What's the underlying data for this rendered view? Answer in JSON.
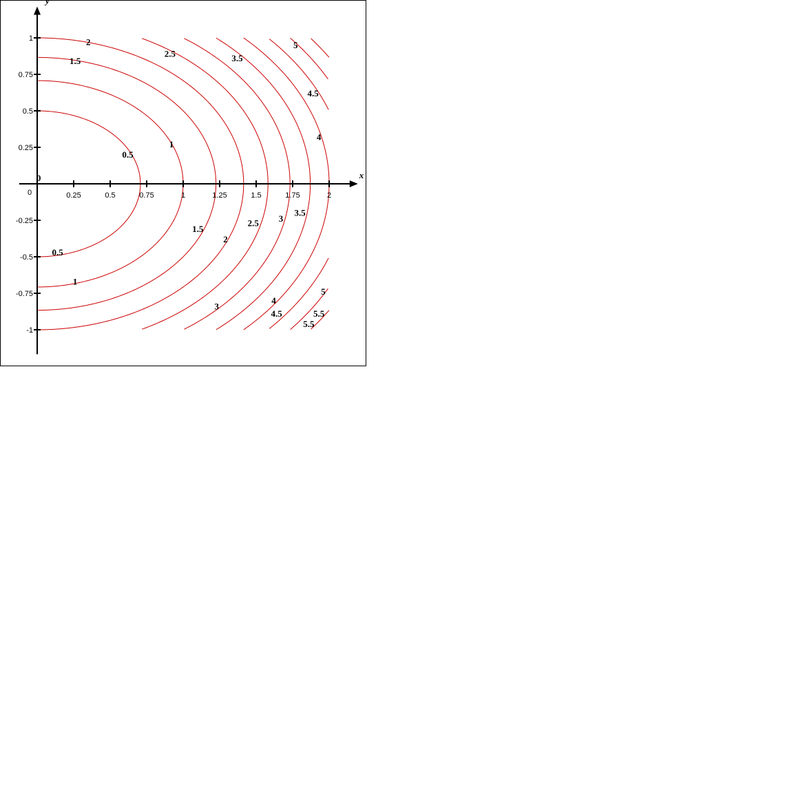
{
  "chart_data": {
    "type": "contour",
    "function": "x^2 + y^2 (level sets of x^2 + y^2 = c^2 scaled)",
    "xlabel": "x",
    "ylabel": "y",
    "origin_label": "0",
    "xlim": [
      -0.1,
      2.15
    ],
    "ylim": [
      -1.12,
      1.12
    ],
    "x_ticks": [
      {
        "value": 0.25,
        "label": "0.25"
      },
      {
        "value": 0.5,
        "label": "0.5"
      },
      {
        "value": 0.75,
        "label": "0.75"
      },
      {
        "value": 1,
        "label": "1"
      },
      {
        "value": 1.25,
        "label": "1.25"
      },
      {
        "value": 1.5,
        "label": "1.5"
      },
      {
        "value": 1.75,
        "label": "1.75"
      },
      {
        "value": 2,
        "label": "2"
      }
    ],
    "y_ticks": [
      {
        "value": 1,
        "label": "1"
      },
      {
        "value": 0.75,
        "label": "0.75"
      },
      {
        "value": 0.5,
        "label": "0.5"
      },
      {
        "value": 0.25,
        "label": "0.25"
      },
      {
        "value": -0.25,
        "label": "-0.25"
      },
      {
        "value": -0.5,
        "label": "-0.5"
      },
      {
        "value": -0.75,
        "label": "-0.75"
      },
      {
        "value": -1,
        "label": "-1"
      }
    ],
    "levels": [
      0.5,
      1,
      1.5,
      2,
      2.5,
      3,
      3.5,
      4,
      4.5,
      5,
      5.5
    ],
    "domain": {
      "x": [
        0,
        2
      ],
      "y": [
        -1,
        1
      ]
    },
    "line_color": "#cc0000",
    "contour_labels": [
      {
        "text": "0",
        "x": 0.01,
        "y": 0.02
      },
      {
        "text": "0.5",
        "x": 0.62,
        "y": 0.18
      },
      {
        "text": "0.5",
        "x": 0.14,
        "y": -0.49
      },
      {
        "text": "1",
        "x": 0.92,
        "y": 0.25
      },
      {
        "text": "1",
        "x": 0.26,
        "y": -0.69
      },
      {
        "text": "1.5",
        "x": 0.26,
        "y": 0.82
      },
      {
        "text": "1.5",
        "x": 1.1,
        "y": -0.33
      },
      {
        "text": "2",
        "x": 0.35,
        "y": 0.95
      },
      {
        "text": "2",
        "x": 1.29,
        "y": -0.4
      },
      {
        "text": "2.5",
        "x": 0.91,
        "y": 0.87
      },
      {
        "text": "2.5",
        "x": 1.48,
        "y": -0.29
      },
      {
        "text": "3",
        "x": 1.23,
        "y": -0.86
      },
      {
        "text": "3",
        "x": 1.67,
        "y": -0.26
      },
      {
        "text": "3.5",
        "x": 1.37,
        "y": 0.84
      },
      {
        "text": "3.5",
        "x": 1.8,
        "y": -0.22
      },
      {
        "text": "4",
        "x": 1.62,
        "y": -0.82
      },
      {
        "text": "4",
        "x": 1.93,
        "y": 0.3
      },
      {
        "text": "4.5",
        "x": 1.64,
        "y": -0.91
      },
      {
        "text": "4.5",
        "x": 1.89,
        "y": 0.6
      },
      {
        "text": "5",
        "x": 1.77,
        "y": 0.93
      },
      {
        "text": "5",
        "x": 1.96,
        "y": -0.76
      },
      {
        "text": "5.5",
        "x": 1.93,
        "y": -0.91
      },
      {
        "text": "5.5",
        "x": 1.86,
        "y": -0.98
      }
    ]
  }
}
